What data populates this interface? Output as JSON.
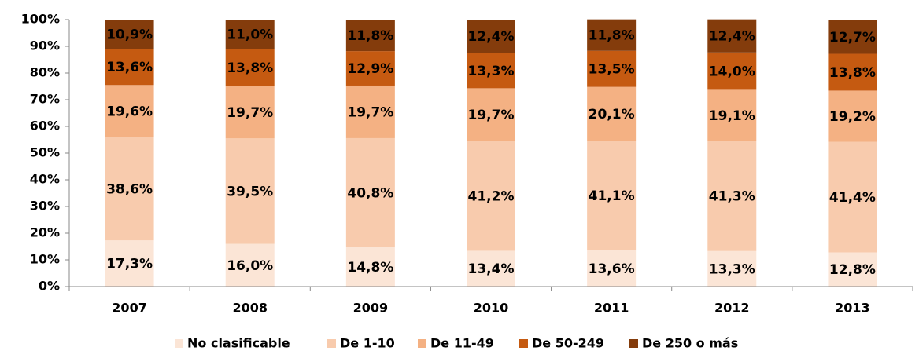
{
  "chart_data": {
    "type": "stacked_bar",
    "categories": [
      "2007",
      "2008",
      "2009",
      "2010",
      "2011",
      "2012",
      "2013"
    ],
    "series": [
      {
        "name": "No clasificable",
        "color": "#fbe5d6",
        "values": [
          17.3,
          16.0,
          14.8,
          13.4,
          13.6,
          13.3,
          12.8
        ],
        "value_labels": [
          "17,3%",
          "16,0%",
          "14,8%",
          "13,4%",
          "13,6%",
          "13,3%",
          "12,8%"
        ]
      },
      {
        "name": "De 1-10",
        "color": "#f8cbad",
        "values": [
          38.6,
          39.5,
          40.8,
          41.2,
          41.1,
          41.3,
          41.4
        ],
        "value_labels": [
          "38,6%",
          "39,5%",
          "40,8%",
          "41,2%",
          "41,1%",
          "41,3%",
          "41,4%"
        ]
      },
      {
        "name": "De 11-49",
        "color": "#f4b183",
        "values": [
          19.6,
          19.7,
          19.7,
          19.7,
          20.1,
          19.1,
          19.2
        ],
        "value_labels": [
          "19,6%",
          "19,7%",
          "19,7%",
          "19,7%",
          "20,1%",
          "19,1%",
          "19,2%"
        ]
      },
      {
        "name": "De 50-249",
        "color": "#c55a11",
        "values": [
          13.6,
          13.8,
          12.9,
          13.3,
          13.5,
          14.0,
          13.8
        ],
        "value_labels": [
          "13,6%",
          "13,8%",
          "12,9%",
          "13,3%",
          "13,5%",
          "14,0%",
          "13,8%"
        ]
      },
      {
        "name": "De 250 o más",
        "color": "#843c0c",
        "values": [
          10.9,
          11.0,
          11.8,
          12.4,
          11.8,
          12.4,
          12.7
        ],
        "value_labels": [
          "10,9%",
          "11,0%",
          "11,8%",
          "12,4%",
          "11,8%",
          "12,4%",
          "12,7%"
        ]
      }
    ],
    "ylim": [
      0,
      100
    ],
    "yticks": [
      {
        "value": 0,
        "label": "0%"
      },
      {
        "value": 10,
        "label": "10%"
      },
      {
        "value": 20,
        "label": "20%"
      },
      {
        "value": 30,
        "label": "30%"
      },
      {
        "value": 40,
        "label": "40%"
      },
      {
        "value": 50,
        "label": "50%"
      },
      {
        "value": 60,
        "label": "60%"
      },
      {
        "value": 70,
        "label": "70%"
      },
      {
        "value": 80,
        "label": "80%"
      },
      {
        "value": 90,
        "label": "90%"
      },
      {
        "value": 100,
        "label": "100%"
      }
    ],
    "legend": "bottom"
  }
}
